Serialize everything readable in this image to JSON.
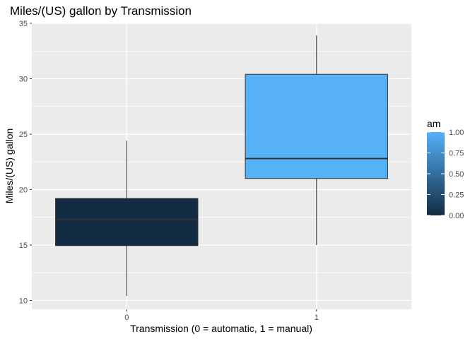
{
  "chart_data": {
    "type": "box",
    "title": "Miles/(US) gallon by Transmission",
    "xlabel": "Transmission (0 = automatic, 1 = manual)",
    "ylabel": "Miles/(US) gallon",
    "categories": [
      "0",
      "1"
    ],
    "boxes": [
      {
        "category": "0",
        "fill_value": 0,
        "min": 10.4,
        "q1": 14.95,
        "median": 17.3,
        "q3": 19.2,
        "max": 24.4
      },
      {
        "category": "1",
        "fill_value": 1,
        "min": 15.0,
        "q1": 21.0,
        "median": 22.8,
        "q3": 30.4,
        "max": 33.9
      }
    ],
    "ylim": [
      9.2,
      35
    ],
    "y_ticks": [
      10,
      15,
      20,
      25,
      30,
      35
    ],
    "grid": true,
    "legend": {
      "title": "am",
      "type": "colorbar",
      "placement": "right",
      "range": [
        0,
        1
      ],
      "ticks": [
        "0.00",
        "0.25",
        "0.50",
        "0.75",
        "1.00"
      ],
      "low_color": "#132b43",
      "high_color": "#56b1f7"
    }
  }
}
